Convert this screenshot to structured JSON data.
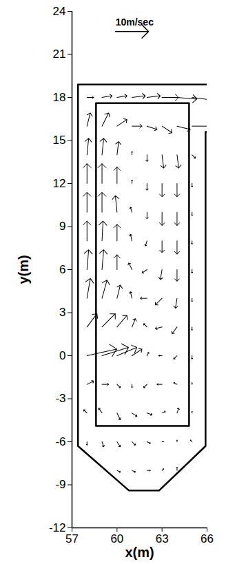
{
  "chart_data": {
    "type": "vector",
    "xlabel": "x(m)",
    "ylabel": "y(m)",
    "xlim": [
      57,
      66
    ],
    "ylim": [
      -12,
      24
    ],
    "xticks": [
      57,
      60,
      63,
      66
    ],
    "yticks": [
      -12,
      -9,
      -6,
      -3,
      0,
      3,
      6,
      9,
      12,
      15,
      18,
      21,
      24
    ],
    "color": "#000000",
    "reference": {
      "label": "10m/sec",
      "x": 59.9,
      "y": 22.6,
      "u": 10,
      "v": 0
    },
    "walls": [
      {
        "x": [
          66.3,
          57.4,
          57.4,
          60.8,
          62.8,
          65.9,
          65.9,
          66.3
        ],
        "y": [
          18.9,
          18.9,
          -6.3,
          -9.4,
          -9.4,
          -6.3,
          15.6,
          15.6
        ]
      },
      {
        "x": [
          58.6,
          64.8,
          64.8,
          58.6,
          58.6
        ],
        "y": [
          17.6,
          17.6,
          -4.9,
          -4.9,
          17.6
        ]
      }
    ],
    "vectors": [
      {
        "x": 58,
        "y": 18,
        "u": 2,
        "v": 0
      },
      {
        "x": 59,
        "y": 18,
        "u": 3,
        "v": 0.5
      },
      {
        "x": 60,
        "y": 18,
        "u": 3,
        "v": 0.5
      },
      {
        "x": 61,
        "y": 18,
        "u": 4,
        "v": 0.5
      },
      {
        "x": 62,
        "y": 18,
        "u": 4,
        "v": 0.5
      },
      {
        "x": 63,
        "y": 18,
        "u": 5,
        "v": 0
      },
      {
        "x": 64,
        "y": 18,
        "u": 6,
        "v": -0.5
      },
      {
        "x": 65,
        "y": 18,
        "u": 8,
        "v": -1
      },
      {
        "x": 58,
        "y": 16,
        "u": 1,
        "v": 4
      },
      {
        "x": 59,
        "y": 16,
        "u": 2,
        "v": 4
      },
      {
        "x": 60,
        "y": 16,
        "u": 3,
        "v": 2
      },
      {
        "x": 61,
        "y": 16,
        "u": 3,
        "v": 0
      },
      {
        "x": 62,
        "y": 16,
        "u": 3,
        "v": -1
      },
      {
        "x": 63,
        "y": 16,
        "u": 3,
        "v": -2
      },
      {
        "x": 64,
        "y": 16,
        "u": 4,
        "v": -1
      },
      {
        "x": 65,
        "y": 16,
        "u": 7,
        "v": 0
      },
      {
        "x": 58,
        "y": 14,
        "u": 0.5,
        "v": 5
      },
      {
        "x": 59,
        "y": 14,
        "u": 0.5,
        "v": 5
      },
      {
        "x": 60,
        "y": 14,
        "u": 0.5,
        "v": 4
      },
      {
        "x": 61,
        "y": 14,
        "u": 0,
        "v": 1
      },
      {
        "x": 62,
        "y": 14,
        "u": 0,
        "v": -2
      },
      {
        "x": 63,
        "y": 14,
        "u": 0.5,
        "v": -4
      },
      {
        "x": 64,
        "y": 14,
        "u": 0.5,
        "v": -4
      },
      {
        "x": 65,
        "y": 14,
        "u": 1,
        "v": -1
      },
      {
        "x": 58,
        "y": 12,
        "u": 0,
        "v": 6
      },
      {
        "x": 59,
        "y": 12,
        "u": 0,
        "v": 6
      },
      {
        "x": 60,
        "y": 12,
        "u": 0,
        "v": 5
      },
      {
        "x": 61,
        "y": 12,
        "u": 0,
        "v": 1
      },
      {
        "x": 62,
        "y": 12,
        "u": 0,
        "v": -2
      },
      {
        "x": 63,
        "y": 12,
        "u": 0,
        "v": -4
      },
      {
        "x": 64,
        "y": 12,
        "u": 0,
        "v": -4
      },
      {
        "x": 65,
        "y": 12,
        "u": 0,
        "v": -1
      },
      {
        "x": 58,
        "y": 10,
        "u": 0,
        "v": 6
      },
      {
        "x": 59,
        "y": 10,
        "u": 0,
        "v": 6
      },
      {
        "x": 60,
        "y": 10,
        "u": -0.5,
        "v": 5
      },
      {
        "x": 61,
        "y": 10,
        "u": -0.5,
        "v": 1.5
      },
      {
        "x": 62,
        "y": 10,
        "u": 0,
        "v": -2
      },
      {
        "x": 63,
        "y": 10,
        "u": 0,
        "v": -4
      },
      {
        "x": 64,
        "y": 10,
        "u": 0,
        "v": -4
      },
      {
        "x": 65,
        "y": 10,
        "u": 0,
        "v": -1
      },
      {
        "x": 58,
        "y": 8,
        "u": 0,
        "v": 6
      },
      {
        "x": 59,
        "y": 8,
        "u": 0.3,
        "v": 6
      },
      {
        "x": 60,
        "y": 8,
        "u": 0,
        "v": 5
      },
      {
        "x": 61,
        "y": 8,
        "u": -0.5,
        "v": 2
      },
      {
        "x": 62,
        "y": 8,
        "u": -0.5,
        "v": -1.5
      },
      {
        "x": 63,
        "y": 8,
        "u": 0,
        "v": -3.5
      },
      {
        "x": 64,
        "y": 8,
        "u": 0,
        "v": -4
      },
      {
        "x": 65,
        "y": 8,
        "u": 0,
        "v": -1
      },
      {
        "x": 58,
        "y": 6,
        "u": 0.5,
        "v": 6
      },
      {
        "x": 59,
        "y": 6,
        "u": 0.5,
        "v": 6
      },
      {
        "x": 60,
        "y": 6,
        "u": 0,
        "v": 4.5
      },
      {
        "x": 61,
        "y": 6,
        "u": -1,
        "v": 2
      },
      {
        "x": 62,
        "y": 6,
        "u": -1.5,
        "v": -1
      },
      {
        "x": 63,
        "y": 6,
        "u": -0.5,
        "v": -3
      },
      {
        "x": 64,
        "y": 6,
        "u": 0,
        "v": -3.5
      },
      {
        "x": 65,
        "y": 6,
        "u": 0,
        "v": -1
      },
      {
        "x": 58,
        "y": 4,
        "u": 1,
        "v": 6
      },
      {
        "x": 59,
        "y": 4,
        "u": 1.5,
        "v": 5.5
      },
      {
        "x": 60,
        "y": 4,
        "u": 1,
        "v": 4
      },
      {
        "x": 61,
        "y": 4,
        "u": -0.5,
        "v": 2
      },
      {
        "x": 62,
        "y": 4,
        "u": -2,
        "v": 0
      },
      {
        "x": 63,
        "y": 4,
        "u": -2,
        "v": -2
      },
      {
        "x": 64,
        "y": 4,
        "u": -0.5,
        "v": -3
      },
      {
        "x": 65,
        "y": 4,
        "u": 0,
        "v": -1
      },
      {
        "x": 58,
        "y": 2,
        "u": 3,
        "v": 4
      },
      {
        "x": 59,
        "y": 2,
        "u": 4,
        "v": 4
      },
      {
        "x": 60,
        "y": 2,
        "u": 3,
        "v": 3.5
      },
      {
        "x": 61,
        "y": 2,
        "u": 1,
        "v": 2.5
      },
      {
        "x": 62,
        "y": 2,
        "u": -1,
        "v": 1
      },
      {
        "x": 63,
        "y": 2,
        "u": -2,
        "v": -0.5
      },
      {
        "x": 64,
        "y": 2,
        "u": -1.5,
        "v": -2
      },
      {
        "x": 65,
        "y": 2,
        "u": 0,
        "v": -1
      },
      {
        "x": 58,
        "y": 0,
        "u": 9,
        "v": 2
      },
      {
        "x": 59,
        "y": 0,
        "u": 8,
        "v": 2.5
      },
      {
        "x": 60,
        "y": 0,
        "u": 6,
        "v": 2.5
      },
      {
        "x": 61,
        "y": 0,
        "u": 3,
        "v": 2
      },
      {
        "x": 62,
        "y": 0,
        "u": 0.5,
        "v": 1
      },
      {
        "x": 63,
        "y": 0,
        "u": -1,
        "v": 0
      },
      {
        "x": 64,
        "y": 0,
        "u": -1,
        "v": -1
      },
      {
        "x": 65,
        "y": 0,
        "u": 0,
        "v": -1
      },
      {
        "x": 58,
        "y": -2,
        "u": 2,
        "v": 1
      },
      {
        "x": 59,
        "y": -2,
        "u": 2,
        "v": 0
      },
      {
        "x": 60,
        "y": -2,
        "u": 1,
        "v": -1
      },
      {
        "x": 61,
        "y": -2,
        "u": 0,
        "v": -1
      },
      {
        "x": 62,
        "y": -2,
        "u": -1,
        "v": -1
      },
      {
        "x": 63,
        "y": -2,
        "u": -1.5,
        "v": 0
      },
      {
        "x": 64,
        "y": -2,
        "u": -1,
        "v": 0.5
      },
      {
        "x": 65,
        "y": -2,
        "u": 0,
        "v": 0.5
      },
      {
        "x": 58,
        "y": -4,
        "u": -1,
        "v": 1
      },
      {
        "x": 59,
        "y": -4,
        "u": -1,
        "v": 1.5
      },
      {
        "x": 60,
        "y": -4,
        "u": 1,
        "v": -2
      },
      {
        "x": 61,
        "y": -4,
        "u": 1.5,
        "v": -1
      },
      {
        "x": 62,
        "y": -4,
        "u": 1.5,
        "v": -0.5
      },
      {
        "x": 63,
        "y": -4,
        "u": 1,
        "v": 0.5
      },
      {
        "x": 64,
        "y": -4,
        "u": 0.5,
        "v": 1.5
      },
      {
        "x": 65,
        "y": -4,
        "u": 0,
        "v": 0.5
      },
      {
        "x": 58,
        "y": -6,
        "u": 0,
        "v": -1
      },
      {
        "x": 59,
        "y": -6,
        "u": 0.5,
        "v": -1.5
      },
      {
        "x": 60,
        "y": -6,
        "u": 1,
        "v": -1.5
      },
      {
        "x": 61,
        "y": -6,
        "u": 1,
        "v": -1
      },
      {
        "x": 62,
        "y": -6,
        "u": 1,
        "v": -0.5
      },
      {
        "x": 63,
        "y": -6,
        "u": 0.5,
        "v": 0
      },
      {
        "x": 64,
        "y": -6,
        "u": 0,
        "v": 0.5
      },
      {
        "x": 65,
        "y": -6,
        "u": -0.5,
        "v": 0.5
      },
      {
        "x": 60,
        "y": -8,
        "u": 1,
        "v": -0.5
      },
      {
        "x": 61,
        "y": -8,
        "u": 1,
        "v": -0.5
      },
      {
        "x": 62,
        "y": -8,
        "u": 1,
        "v": 0
      },
      {
        "x": 63,
        "y": -8,
        "u": 0.5,
        "v": 0.5
      },
      {
        "x": 64,
        "y": -8,
        "u": 0,
        "v": 1
      }
    ]
  }
}
